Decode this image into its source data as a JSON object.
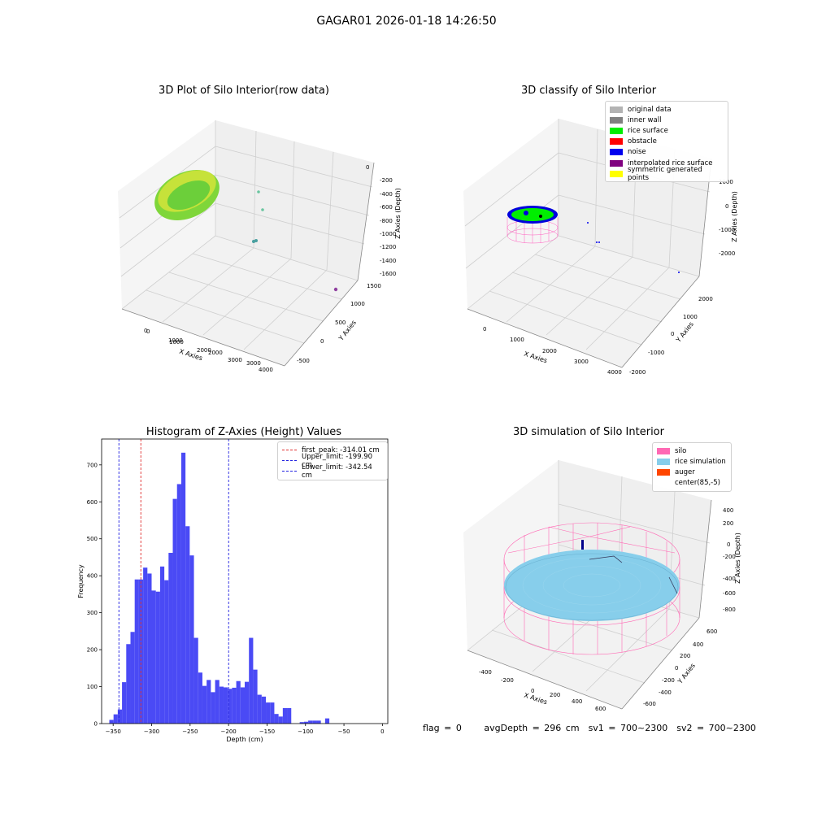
{
  "figure": {
    "title": "GAGAR01 2026-01-18 14:26:50"
  },
  "footer": {
    "flag": "flag = 0",
    "avg_depth": "avgDepth = 296 cm",
    "sv1": "sv1 = 700~2300",
    "sv2": "sv2 = 700~2300"
  },
  "colors": {
    "hist_bar": "#4a4af5",
    "first_peak": "#e03030",
    "limits": "#2020e0",
    "original": "#b3b3b3",
    "inner_wall": "#808080",
    "rice_surface": "#00ee00",
    "obstacle": "#ff0000",
    "noise": "#0000ee",
    "interpolated": "#800080",
    "symmetric": "#ffff00",
    "silo": "#ff69b4",
    "rice_sim": "#87ceeb",
    "auger": "#ff4500"
  },
  "chart_data": [
    {
      "type": "scatter",
      "title": "3D Plot of Silo Interior(row data)",
      "xlabel": "X Axies",
      "ylabel": "Y Axies",
      "zlabel": "Z Axies (Depth)",
      "x_ticks": [
        "0",
        "1000",
        "2000",
        "3000",
        "4000"
      ],
      "y_ticks": [
        "-500",
        "0",
        "500",
        "1000",
        "1500"
      ],
      "z_ticks": [
        "0",
        "-200",
        "-400",
        "-600",
        "-800",
        "-1000",
        "-1200",
        "-1400",
        "-1600"
      ]
    },
    {
      "type": "scatter",
      "title": "3D classify of Silo Interior",
      "xlabel": "X Axies",
      "ylabel": "Y Axies",
      "zlabel": "Z Axies (Depth)",
      "x_ticks": [
        "0",
        "1000",
        "2000",
        "3000",
        "4000"
      ],
      "y_ticks": [
        "-2000",
        "-1000",
        "0",
        "1000",
        "2000"
      ],
      "z_ticks": [
        "1000",
        "0",
        "-1000",
        "-2000"
      ],
      "legend": [
        "original data",
        "inner wall",
        "rice surface",
        "obstacle",
        "noise",
        "interpolated rice surface",
        "symmetric generated points"
      ]
    },
    {
      "type": "bar",
      "title": "Histogram of Z-Axies (Height) Values",
      "xlabel": "Depth (cm)",
      "ylabel": "Frequency",
      "xlim": [
        -365,
        7
      ],
      "ylim": [
        0,
        770
      ],
      "x_ticks": [
        -350,
        -300,
        -250,
        -200,
        -150,
        -100,
        -50,
        0
      ],
      "y_ticks": [
        0,
        100,
        200,
        300,
        400,
        500,
        600,
        700
      ],
      "bin_start": -355,
      "bin_width": 5.5,
      "values": [
        10,
        25,
        38,
        112,
        215,
        248,
        390,
        390,
        422,
        406,
        360,
        357,
        425,
        388,
        462,
        608,
        648,
        733,
        534,
        455,
        232,
        138,
        102,
        118,
        85,
        118,
        100,
        98,
        94,
        97,
        115,
        98,
        113,
        232,
        146,
        78,
        73,
        57,
        57,
        26,
        19,
        42,
        42,
        0,
        0,
        4,
        5,
        8,
        8,
        8,
        0,
        14
      ],
      "lines": [
        {
          "label": "first_peak: -314.01 cm",
          "value": -314.01,
          "style": "first_peak"
        },
        {
          "label": "Upper_limit: -199.90 cm",
          "value": -199.9,
          "style": "limits"
        },
        {
          "label": "Lower_limit: -342.54 cm",
          "value": -342.54,
          "style": "limits"
        }
      ]
    },
    {
      "type": "scatter",
      "title": "3D simulation of Silo Interior",
      "xlabel": "X Axies",
      "ylabel": "Y Axies",
      "zlabel": "Z Axies (Depth)",
      "x_ticks": [
        "-400",
        "-200",
        "0",
        "200",
        "400",
        "600"
      ],
      "y_ticks": [
        "-600",
        "-400",
        "-200",
        "0",
        "200",
        "400",
        "600"
      ],
      "z_ticks": [
        "400",
        "200",
        "0",
        "-200",
        "-400",
        "-600",
        "-800"
      ],
      "legend": [
        "silo",
        "rice simulation",
        "auger",
        "center(85,-5)"
      ]
    }
  ]
}
